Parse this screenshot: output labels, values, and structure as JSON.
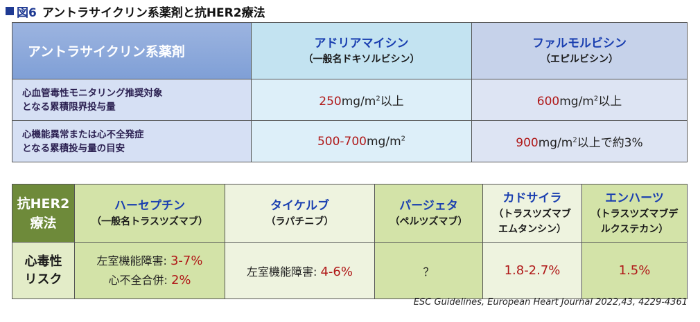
{
  "title": {
    "prefix": "図6",
    "text": "アントラサイクリン系薬剤と抗HER2療法"
  },
  "table1": {
    "header_label": "アントラサイクリン系薬剤",
    "drugs": [
      {
        "name": "アドリアマイシン",
        "generic": "（一般名ドキソルビシン）"
      },
      {
        "name": "ファルモルビシン",
        "generic": "（エピルビシン）"
      }
    ],
    "rows": [
      {
        "label_line1": "心血管毒性モニタリング推奨対象",
        "label_line2": "となる累積限界投与量",
        "values": [
          {
            "num": "250",
            "pre": "mg/m",
            "sup": "2",
            "post": "以上"
          },
          {
            "num": "600",
            "pre": "mg/m",
            "sup": "2",
            "post": "以上"
          }
        ]
      },
      {
        "label_line1": "心機能異常または心不全発症",
        "label_line2": "となる累積投与量の目安",
        "values": [
          {
            "num": "500-700",
            "pre": "mg/m",
            "sup": "2",
            "post": ""
          },
          {
            "num": "900",
            "pre": "mg/m",
            "sup": "2",
            "post": "以上で約3%"
          }
        ]
      }
    ]
  },
  "table2": {
    "header_line1": "抗HER2",
    "header_line2": "療法",
    "drugs": [
      {
        "name": "ハーセプチン",
        "generic1": "（一般名トラスツズマブ）",
        "generic2": ""
      },
      {
        "name": "タイケルブ",
        "generic1": "（ラパチニブ）",
        "generic2": ""
      },
      {
        "name": "パージェタ",
        "generic1": "（ペルツズマブ）",
        "generic2": ""
      },
      {
        "name": "カドサイラ",
        "generic1": "（トラスツズマブ",
        "generic2": "エムタンシン）"
      },
      {
        "name": "エンハーツ",
        "generic1": "（トラスツズマブデ",
        "generic2": "ルクステカン）"
      }
    ],
    "risk_line1": "心毒性",
    "risk_line2": "リスク",
    "risks": {
      "herceptin_a_label": "左室機能障害: ",
      "herceptin_a_value": "3-7%",
      "herceptin_b_label": "心不全合併: ",
      "herceptin_b_value": "2%",
      "tykerb_label": "左室機能障害: ",
      "tykerb_value": "4-6%",
      "perjeta_value": "？",
      "kadcyla_value": "1.8-2.7%",
      "enhertu_value": "1.5%"
    }
  },
  "citation": "ESC  Guidelines, European Heart Journal 2022,43, 4229-4361",
  "colors": {
    "accent_blue": "#1a3fb0",
    "value_red": "#b01818",
    "her2_header_green": "#6e8a3a"
  }
}
